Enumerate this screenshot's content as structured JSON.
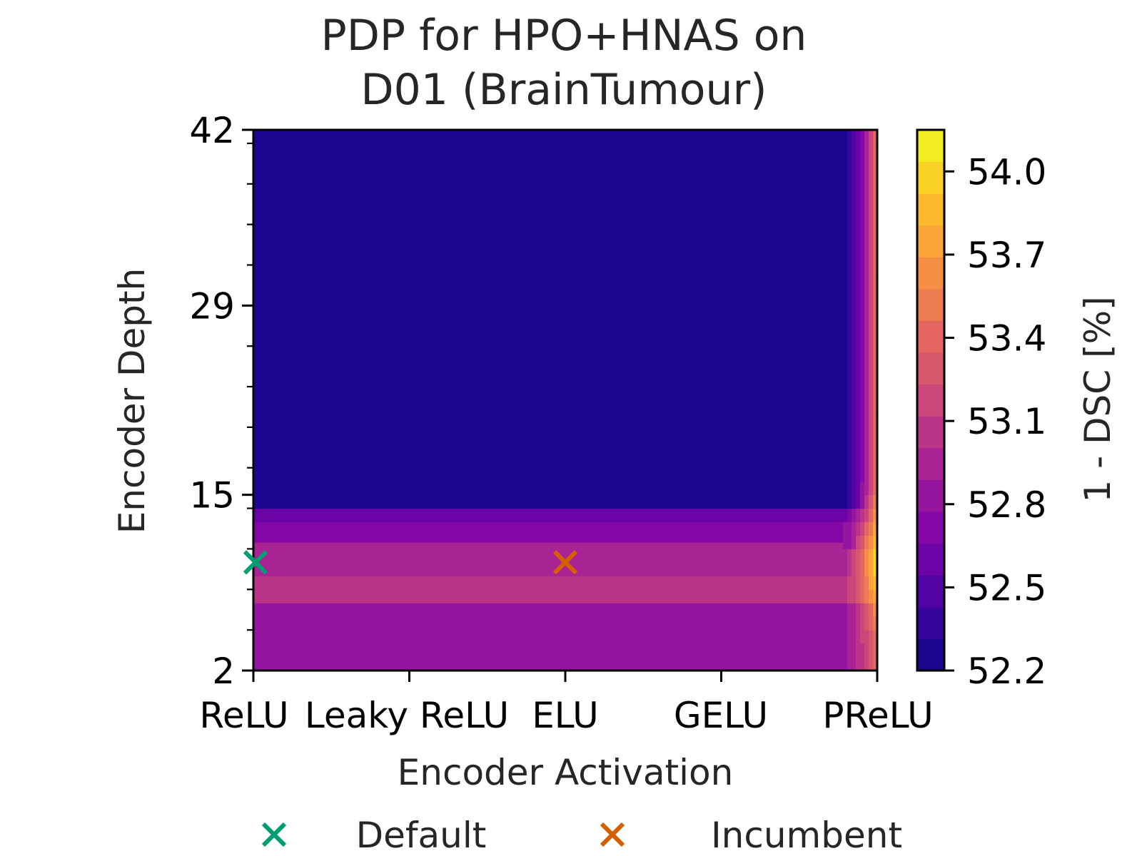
{
  "chart_data": {
    "type": "heatmap",
    "title_lines": [
      "PDP for HPO+HNAS on",
      "D01 (BrainTumour)"
    ],
    "xlabel": "Encoder Activation",
    "ylabel": "Encoder Depth",
    "x_categories": [
      "ReLU",
      "Leaky ReLU",
      "ELU",
      "GELU",
      "PReLU"
    ],
    "y_ticks": [
      "2",
      "15",
      "29",
      "42"
    ],
    "ylim": [
      2,
      42
    ],
    "colorbar": {
      "label": "1 - DSC [%]",
      "ticks": [
        "52.2",
        "52.5",
        "52.8",
        "53.1",
        "53.4",
        "53.7",
        "54.0"
      ],
      "range": [
        52.2,
        54.15
      ],
      "colormap": "plasma"
    },
    "bands": [
      {
        "y_range": [
          2,
          7
        ],
        "value": 52.85
      },
      {
        "y_range": [
          7,
          9
        ],
        "value": 53.05
      },
      {
        "y_range": [
          9,
          11.5
        ],
        "value": 52.95
      },
      {
        "y_range": [
          11.5,
          13
        ],
        "value": 52.75
      },
      {
        "y_range": [
          13,
          14
        ],
        "value": 52.6
      },
      {
        "y_range": [
          14,
          42
        ],
        "value": 52.2
      }
    ],
    "edge_column": {
      "x_category": "PReLU",
      "peak_depth": 10,
      "peak_value": 54.0,
      "upper_value": 53.4
    },
    "points": [
      {
        "label": "Default",
        "x": "ReLU",
        "y": 10,
        "color": "#009e73"
      },
      {
        "label": "Incumbent",
        "x": "ELU",
        "y": 10,
        "color": "#d55e00"
      }
    ],
    "legend": [
      {
        "label": "Default",
        "color": "#009e73",
        "marker": "x"
      },
      {
        "label": "Incumbent",
        "color": "#d55e00",
        "marker": "x"
      }
    ]
  }
}
